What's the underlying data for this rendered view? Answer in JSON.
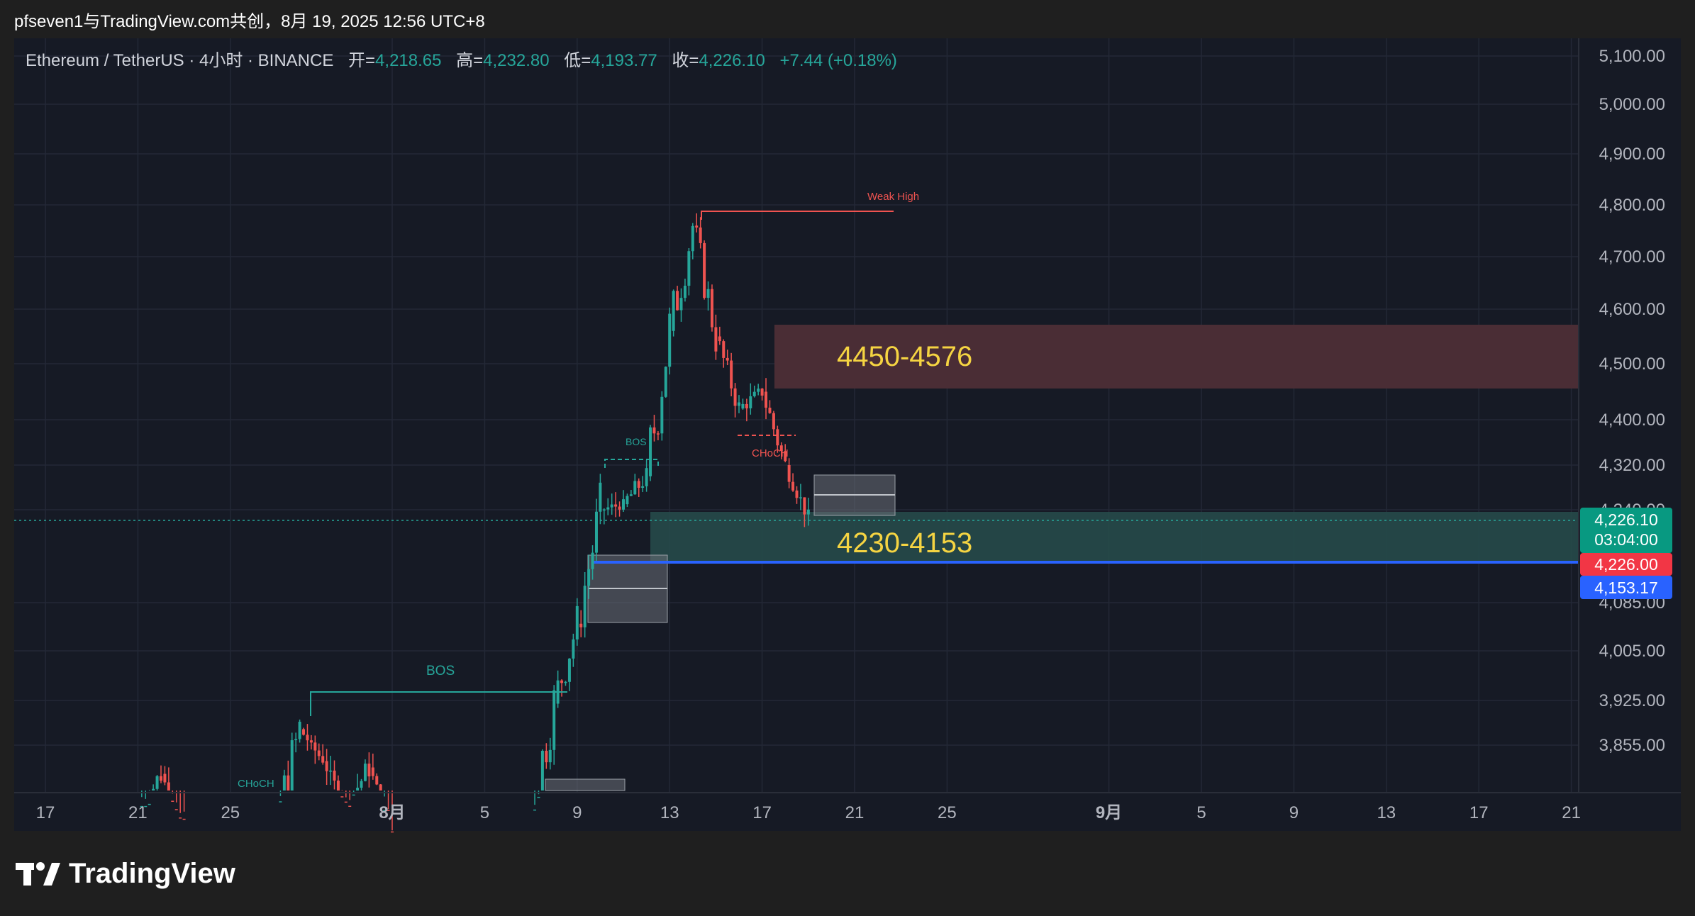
{
  "header": {
    "share_text": "pfseven1与TradingView.com共创，8月 19, 2025 12:56 UTC+8"
  },
  "symbol_bar": {
    "symbol": "Ethereum / TetherUS · 4小时 · BINANCE",
    "open_label": "开=",
    "open_value": "4,218.65",
    "high_label": "高=",
    "high_value": "4,232.80",
    "low_label": "低=",
    "low_value": "4,193.77",
    "close_label": "收=",
    "close_value": "4,226.10",
    "change": "+7.44 (+0.18%)"
  },
  "colors": {
    "background": "#161a25",
    "up": "#26a69a",
    "down": "#ef5350",
    "supply_zone": "#4a2d35",
    "demand_zone": "#264a4a",
    "zone_label": "#f5d442",
    "support_line": "#2962ff",
    "grid": "#242936"
  },
  "chart_data": {
    "type": "candlestick",
    "symbol": "ETHUSDT",
    "interval": "4h",
    "exchange": "BINANCE",
    "price_axis": {
      "ticks": [
        "5,100.00",
        "5,000.00",
        "4,900.00",
        "4,800.00",
        "4,700.00",
        "4,600.00",
        "4,500.00",
        "4,400.00",
        "4,320.00",
        "4,240.00",
        "4,085.00",
        "4,005.00",
        "3,925.00",
        "3,855.00"
      ],
      "tick_values": [
        5100,
        5000,
        4900,
        4800,
        4700,
        4600,
        4500,
        4400,
        4320,
        4240,
        4085,
        4005,
        3925,
        3855
      ]
    },
    "time_axis": {
      "ticks": [
        "17",
        "21",
        "25",
        "8月",
        "5",
        "9",
        "13",
        "17",
        "21",
        "25",
        "9月",
        "5",
        "9",
        "13",
        "17",
        "21"
      ],
      "tick_dates": [
        "2025-07-17",
        "2025-07-21",
        "2025-07-25",
        "2025-08-01",
        "2025-08-05",
        "2025-08-09",
        "2025-08-13",
        "2025-08-17",
        "2025-08-21",
        "2025-08-25",
        "2025-09-01",
        "2025-09-05",
        "2025-09-09",
        "2025-09-13",
        "2025-09-17",
        "2025-09-21"
      ],
      "bold_ticks": [
        "8月",
        "9月"
      ]
    },
    "price_series": [
      {
        "date": "2025-07-21",
        "price": 3750
      },
      {
        "date": "2025-07-22",
        "price": 3810
      },
      {
        "date": "2025-07-23",
        "price": 3720
      },
      {
        "date": "2025-07-27",
        "price": 3740
      },
      {
        "date": "2025-07-28",
        "price": 3880
      },
      {
        "date": "2025-07-29",
        "price": 3830
      },
      {
        "date": "2025-07-30",
        "price": 3760
      },
      {
        "date": "2025-07-31",
        "price": 3820
      },
      {
        "date": "2025-08-01",
        "price": 3700
      },
      {
        "date": "2025-08-07",
        "price": 3750
      },
      {
        "date": "2025-08-08",
        "price": 3920
      },
      {
        "date": "2025-08-09",
        "price": 4050
      },
      {
        "date": "2025-08-10",
        "price": 4240
      },
      {
        "date": "2025-08-11",
        "price": 4250
      },
      {
        "date": "2025-08-12",
        "price": 4300
      },
      {
        "date": "2025-08-13",
        "price": 4560
      },
      {
        "date": "2025-08-14",
        "price": 4760
      },
      {
        "date": "2025-08-15",
        "price": 4550
      },
      {
        "date": "2025-08-16",
        "price": 4420
      },
      {
        "date": "2025-08-17",
        "price": 4450
      },
      {
        "date": "2025-08-18",
        "price": 4320
      },
      {
        "date": "2025-08-19",
        "price": 4226.1
      }
    ],
    "annotations": [
      {
        "text": "Weak High",
        "price": 4788,
        "date_start": "2025-08-14",
        "date_end": "2025-08-23"
      },
      {
        "text": "BOS",
        "price": 3945,
        "date_start": "2025-07-28",
        "date_end": "2025-08-08"
      },
      {
        "text": "BOS",
        "price": 4335,
        "date_start": "2025-08-10",
        "date_end": "2025-08-12"
      },
      {
        "text": "CHoCH",
        "price": 3850
      },
      {
        "text": "CHoCH",
        "price": 4372
      }
    ],
    "zones": [
      {
        "label": "4450-4576",
        "low": 4450,
        "high": 4576,
        "type": "supply"
      },
      {
        "label": "4230-4153",
        "low": 4153,
        "high": 4230,
        "type": "demand"
      }
    ],
    "price_labels": [
      {
        "text": "4,226.10",
        "sub": "03:04:00",
        "color": "#089981"
      },
      {
        "text": "4,226.00",
        "color": "#f23645"
      },
      {
        "text": "4,153.17",
        "color": "#2962ff"
      }
    ]
  },
  "footer": {
    "brand": "TradingView"
  }
}
